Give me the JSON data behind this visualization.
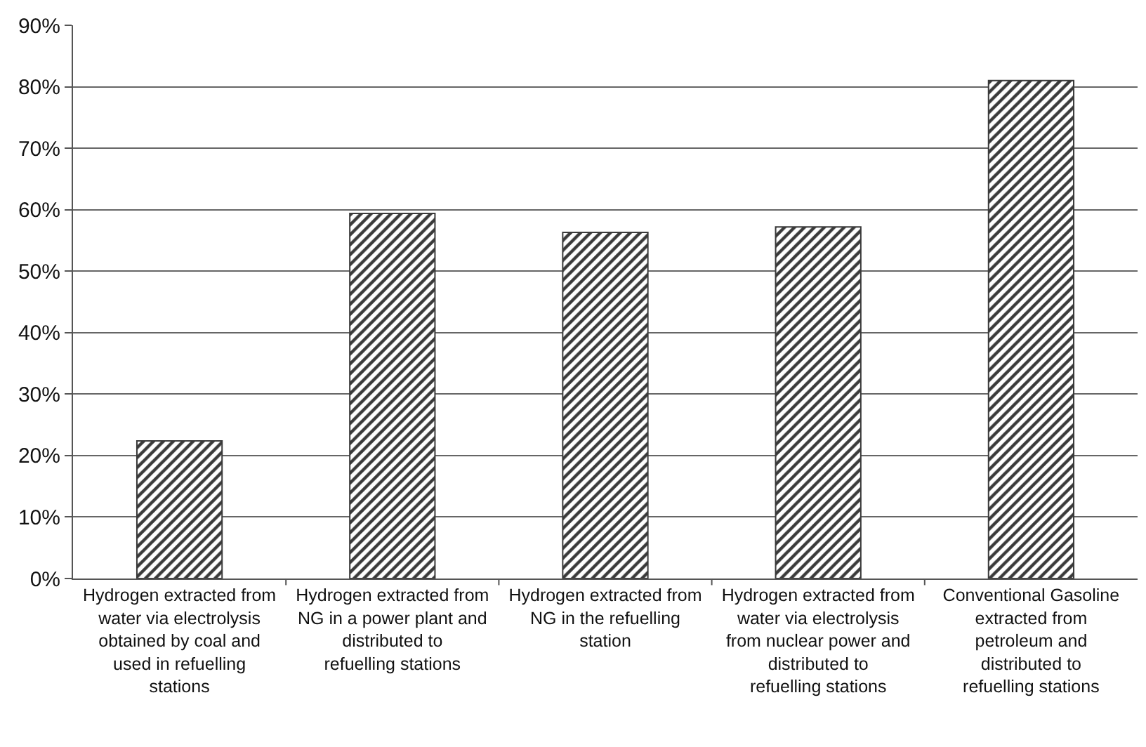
{
  "chart_data": {
    "type": "bar",
    "categories": [
      "Hydrogen extracted from water via electrolysis obtained by coal and used in refuelling stations",
      "Hydrogen extracted from NG in a power plant and distributed to refuelling stations",
      "Hydrogen extracted from NG in the refuelling station",
      "Hydrogen extracted from water via electrolysis from nuclear power and distributed to refuelling stations",
      "Conventional Gasoline extracted from petroleum and distributed to refuelling stations"
    ],
    "values": [
      22.4,
      59.4,
      56.3,
      57.2,
      81.0
    ],
    "color": "#3a3a3a",
    "ylim": [
      0,
      90
    ],
    "yticks": [
      {
        "value": 0,
        "label": "0%"
      },
      {
        "value": 10,
        "label": "10%"
      },
      {
        "value": 20,
        "label": "20%"
      },
      {
        "value": 30,
        "label": "30%"
      },
      {
        "value": 40,
        "label": "40%"
      },
      {
        "value": 50,
        "label": "50%"
      },
      {
        "value": 60,
        "label": "60%"
      },
      {
        "value": 70,
        "label": "70%"
      },
      {
        "value": 80,
        "label": "80%"
      },
      {
        "value": 90,
        "label": "90%"
      }
    ],
    "grid": "y"
  }
}
